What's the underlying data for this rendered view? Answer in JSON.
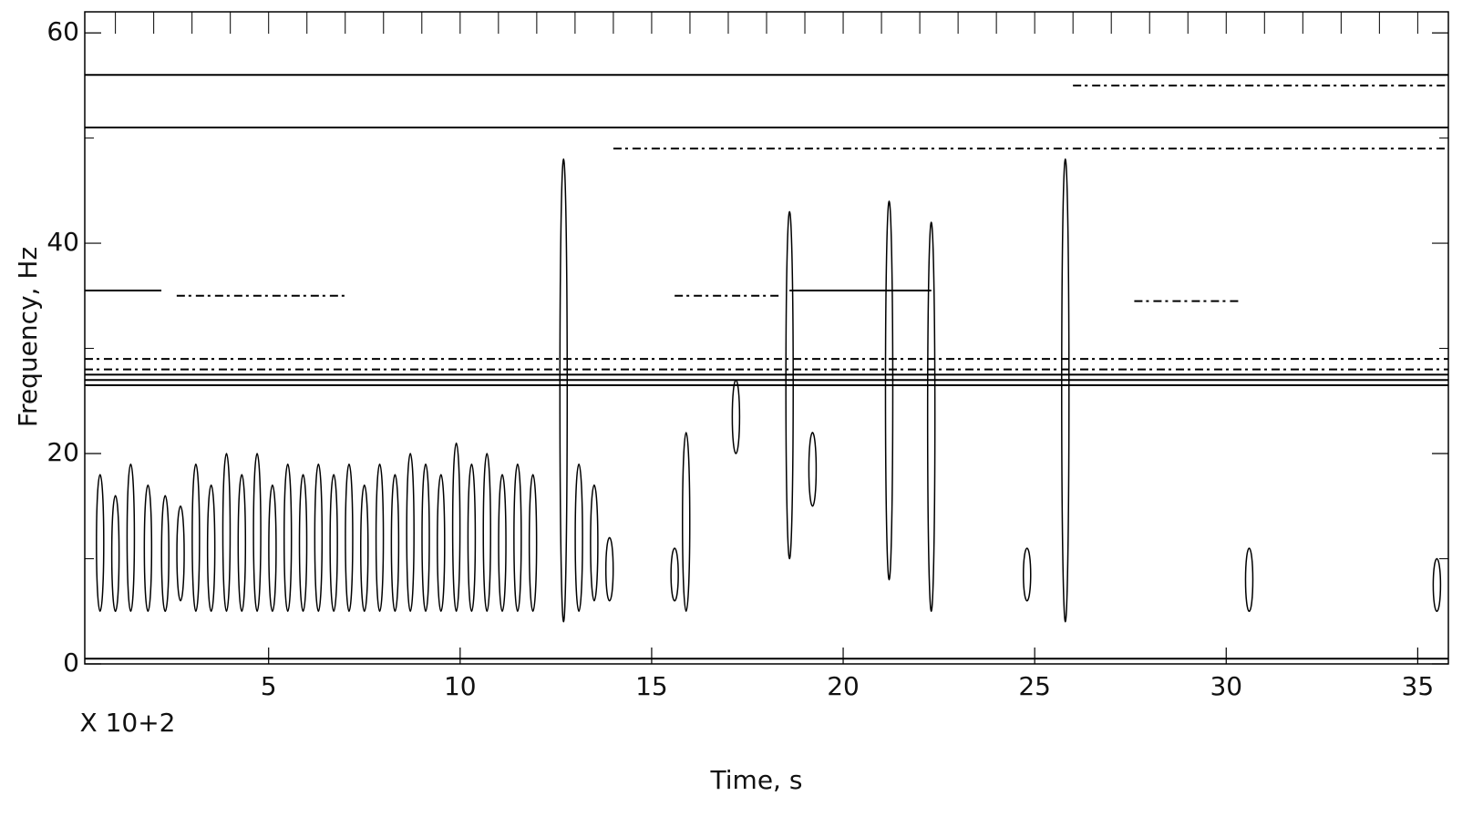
{
  "chart_data": {
    "type": "contour",
    "x_label": "Time, s",
    "y_label": "Frequency, Hz",
    "x_multiplier": "X 10+2",
    "xlim": [
      0.2,
      35.8
    ],
    "ylim": [
      0,
      62
    ],
    "xticks": [
      5,
      10,
      15,
      20,
      25,
      30,
      35
    ],
    "xminor": [
      1,
      2,
      3,
      4,
      5,
      6,
      7,
      8,
      9,
      10,
      11,
      12,
      13,
      14,
      15,
      16,
      17,
      18,
      19,
      20,
      21,
      22,
      23,
      24,
      25,
      26,
      27,
      28,
      29,
      30,
      31,
      32,
      33,
      34,
      35
    ],
    "yticks": [
      0,
      20,
      40,
      60
    ],
    "yminor": [
      10,
      30,
      50
    ],
    "color": "#000000",
    "lines": [
      {
        "y": 27,
        "x0": 0.2,
        "x1": 35.8
      },
      {
        "y": 27.5,
        "x0": 0.2,
        "x1": 35.8
      },
      {
        "y": 26.5,
        "x0": 0.2,
        "x1": 35.8
      },
      {
        "y": 35.5,
        "x0": 0.2,
        "x1": 2.2
      },
      {
        "y": 35.5,
        "x0": 18.6,
        "x1": 22.3
      },
      {
        "y": 56,
        "x0": 0.2,
        "x1": 35.8
      },
      {
        "y": 51,
        "x0": 0.2,
        "x1": 35.8
      },
      {
        "y": 0.5,
        "x0": 0.2,
        "x1": 35.8
      }
    ],
    "dotted_lines": [
      {
        "y": 29,
        "x0": 0.2,
        "x1": 35.8
      },
      {
        "y": 28,
        "x0": 0.2,
        "x1": 35.8
      },
      {
        "y": 35,
        "x0": 2.6,
        "x1": 7.0
      },
      {
        "y": 35,
        "x0": 15.6,
        "x1": 18.4
      },
      {
        "y": 34.5,
        "x0": 27.6,
        "x1": 30.4
      },
      {
        "y": 55,
        "x0": 26.0,
        "x1": 35.8
      },
      {
        "y": 49,
        "x0": 14.0,
        "x1": 35.8
      }
    ],
    "bursts": [
      {
        "x": 0.6,
        "y0": 5,
        "y1": 18
      },
      {
        "x": 1.0,
        "y0": 5,
        "y1": 16
      },
      {
        "x": 1.4,
        "y0": 5,
        "y1": 19
      },
      {
        "x": 1.85,
        "y0": 5,
        "y1": 17
      },
      {
        "x": 2.3,
        "y0": 5,
        "y1": 16
      },
      {
        "x": 2.7,
        "y0": 6,
        "y1": 15
      },
      {
        "x": 3.1,
        "y0": 5,
        "y1": 19
      },
      {
        "x": 3.5,
        "y0": 5,
        "y1": 17
      },
      {
        "x": 3.9,
        "y0": 5,
        "y1": 20
      },
      {
        "x": 4.3,
        "y0": 5,
        "y1": 18
      },
      {
        "x": 4.7,
        "y0": 5,
        "y1": 20
      },
      {
        "x": 5.1,
        "y0": 5,
        "y1": 17
      },
      {
        "x": 5.5,
        "y0": 5,
        "y1": 19
      },
      {
        "x": 5.9,
        "y0": 5,
        "y1": 18
      },
      {
        "x": 6.3,
        "y0": 5,
        "y1": 19
      },
      {
        "x": 6.7,
        "y0": 5,
        "y1": 18
      },
      {
        "x": 7.1,
        "y0": 5,
        "y1": 19
      },
      {
        "x": 7.5,
        "y0": 5,
        "y1": 17
      },
      {
        "x": 7.9,
        "y0": 5,
        "y1": 19
      },
      {
        "x": 8.3,
        "y0": 5,
        "y1": 18
      },
      {
        "x": 8.7,
        "y0": 5,
        "y1": 20
      },
      {
        "x": 9.1,
        "y0": 5,
        "y1": 19
      },
      {
        "x": 9.5,
        "y0": 5,
        "y1": 18
      },
      {
        "x": 9.9,
        "y0": 5,
        "y1": 21
      },
      {
        "x": 10.3,
        "y0": 5,
        "y1": 19
      },
      {
        "x": 10.7,
        "y0": 5,
        "y1": 20
      },
      {
        "x": 11.1,
        "y0": 5,
        "y1": 18
      },
      {
        "x": 11.5,
        "y0": 5,
        "y1": 19
      },
      {
        "x": 11.9,
        "y0": 5,
        "y1": 18
      },
      {
        "x": 12.7,
        "y0": 4,
        "y1": 48
      },
      {
        "x": 13.1,
        "y0": 5,
        "y1": 19
      },
      {
        "x": 13.5,
        "y0": 6,
        "y1": 17
      },
      {
        "x": 13.9,
        "y0": 6,
        "y1": 12
      },
      {
        "x": 15.9,
        "y0": 5,
        "y1": 22
      },
      {
        "x": 15.6,
        "y0": 6,
        "y1": 11
      },
      {
        "x": 18.6,
        "y0": 10,
        "y1": 43
      },
      {
        "x": 21.2,
        "y0": 8,
        "y1": 44
      },
      {
        "x": 22.3,
        "y0": 5,
        "y1": 42
      },
      {
        "x": 25.8,
        "y0": 4,
        "y1": 48
      },
      {
        "x": 24.8,
        "y0": 6,
        "y1": 11
      },
      {
        "x": 30.6,
        "y0": 5,
        "y1": 11
      },
      {
        "x": 35.5,
        "y0": 5,
        "y1": 10
      },
      {
        "x": 17.2,
        "y0": 20,
        "y1": 27
      },
      {
        "x": 19.2,
        "y0": 15,
        "y1": 22
      }
    ]
  }
}
